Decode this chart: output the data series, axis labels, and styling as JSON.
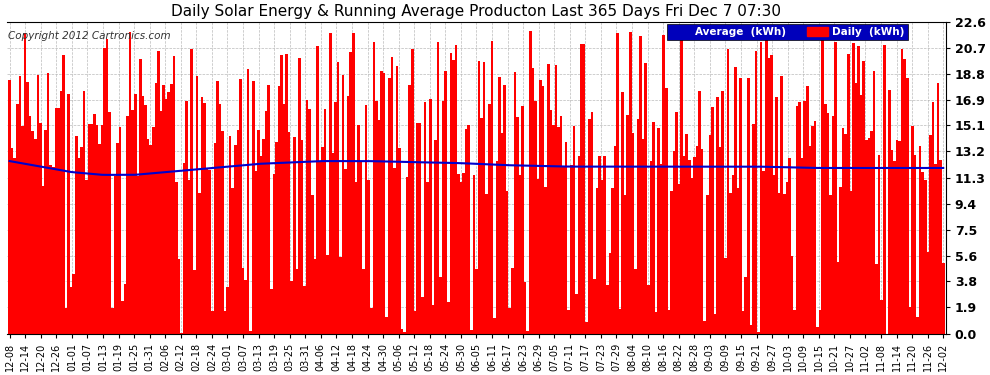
{
  "title": "Daily Solar Energy & Running Average Producton Last 365 Days Fri Dec 7 07:30",
  "copyright": "Copyright 2012 Cartronics.com",
  "yticks": [
    0.0,
    1.9,
    3.8,
    5.6,
    7.5,
    9.4,
    11.3,
    13.2,
    15.1,
    16.9,
    18.8,
    20.7,
    22.6
  ],
  "ymax": 22.6,
  "ymin": 0.0,
  "bar_color": "#FF0000",
  "avg_color": "#0000CC",
  "bg_color": "#FFFFFF",
  "plot_bg_color": "#FFFFFF",
  "grid_color": "#AAAAAA",
  "legend_avg_bg": "#0000BB",
  "legend_daily_bg": "#FF0000",
  "legend_avg_text": "Average  (kWh)",
  "legend_daily_text": "Daily  (kWh)",
  "x_tick_labels": [
    "12-08",
    "12-14",
    "12-20",
    "12-26",
    "01-01",
    "01-07",
    "01-13",
    "01-19",
    "01-25",
    "01-31",
    "02-06",
    "02-12",
    "02-18",
    "02-24",
    "03-01",
    "03-07",
    "03-13",
    "03-19",
    "03-25",
    "03-31",
    "04-06",
    "04-12",
    "04-18",
    "04-24",
    "04-30",
    "05-06",
    "05-12",
    "05-18",
    "05-24",
    "05-30",
    "06-05",
    "06-11",
    "06-17",
    "06-23",
    "06-29",
    "07-05",
    "07-11",
    "07-17",
    "07-23",
    "07-29",
    "08-04",
    "08-10",
    "08-16",
    "08-22",
    "08-28",
    "09-03",
    "09-09",
    "09-15",
    "09-21",
    "09-27",
    "10-03",
    "10-09",
    "10-15",
    "10-21",
    "10-27",
    "11-02",
    "11-08",
    "11-14",
    "11-20",
    "11-26",
    "12-02"
  ],
  "n_bars": 365,
  "avg_curve_points": [
    12.5,
    12.3,
    12.1,
    11.9,
    11.7,
    11.6,
    11.5,
    11.5,
    11.5,
    11.6,
    11.7,
    11.8,
    11.9,
    12.0,
    12.1,
    12.2,
    12.3,
    12.35,
    12.4,
    12.45,
    12.5,
    12.5,
    12.5,
    12.5,
    12.48,
    12.45,
    12.42,
    12.4,
    12.38,
    12.35,
    12.3,
    12.25,
    12.2,
    12.18,
    12.15,
    12.12,
    12.1,
    12.1,
    12.1,
    12.1,
    12.1,
    12.1,
    12.1,
    12.1,
    12.1,
    12.1,
    12.1,
    12.1,
    12.1,
    12.08,
    12.05,
    12.02,
    12.0,
    12.0,
    12.0,
    12.0,
    12.0,
    12.0,
    12.0,
    12.0,
    12.0
  ]
}
